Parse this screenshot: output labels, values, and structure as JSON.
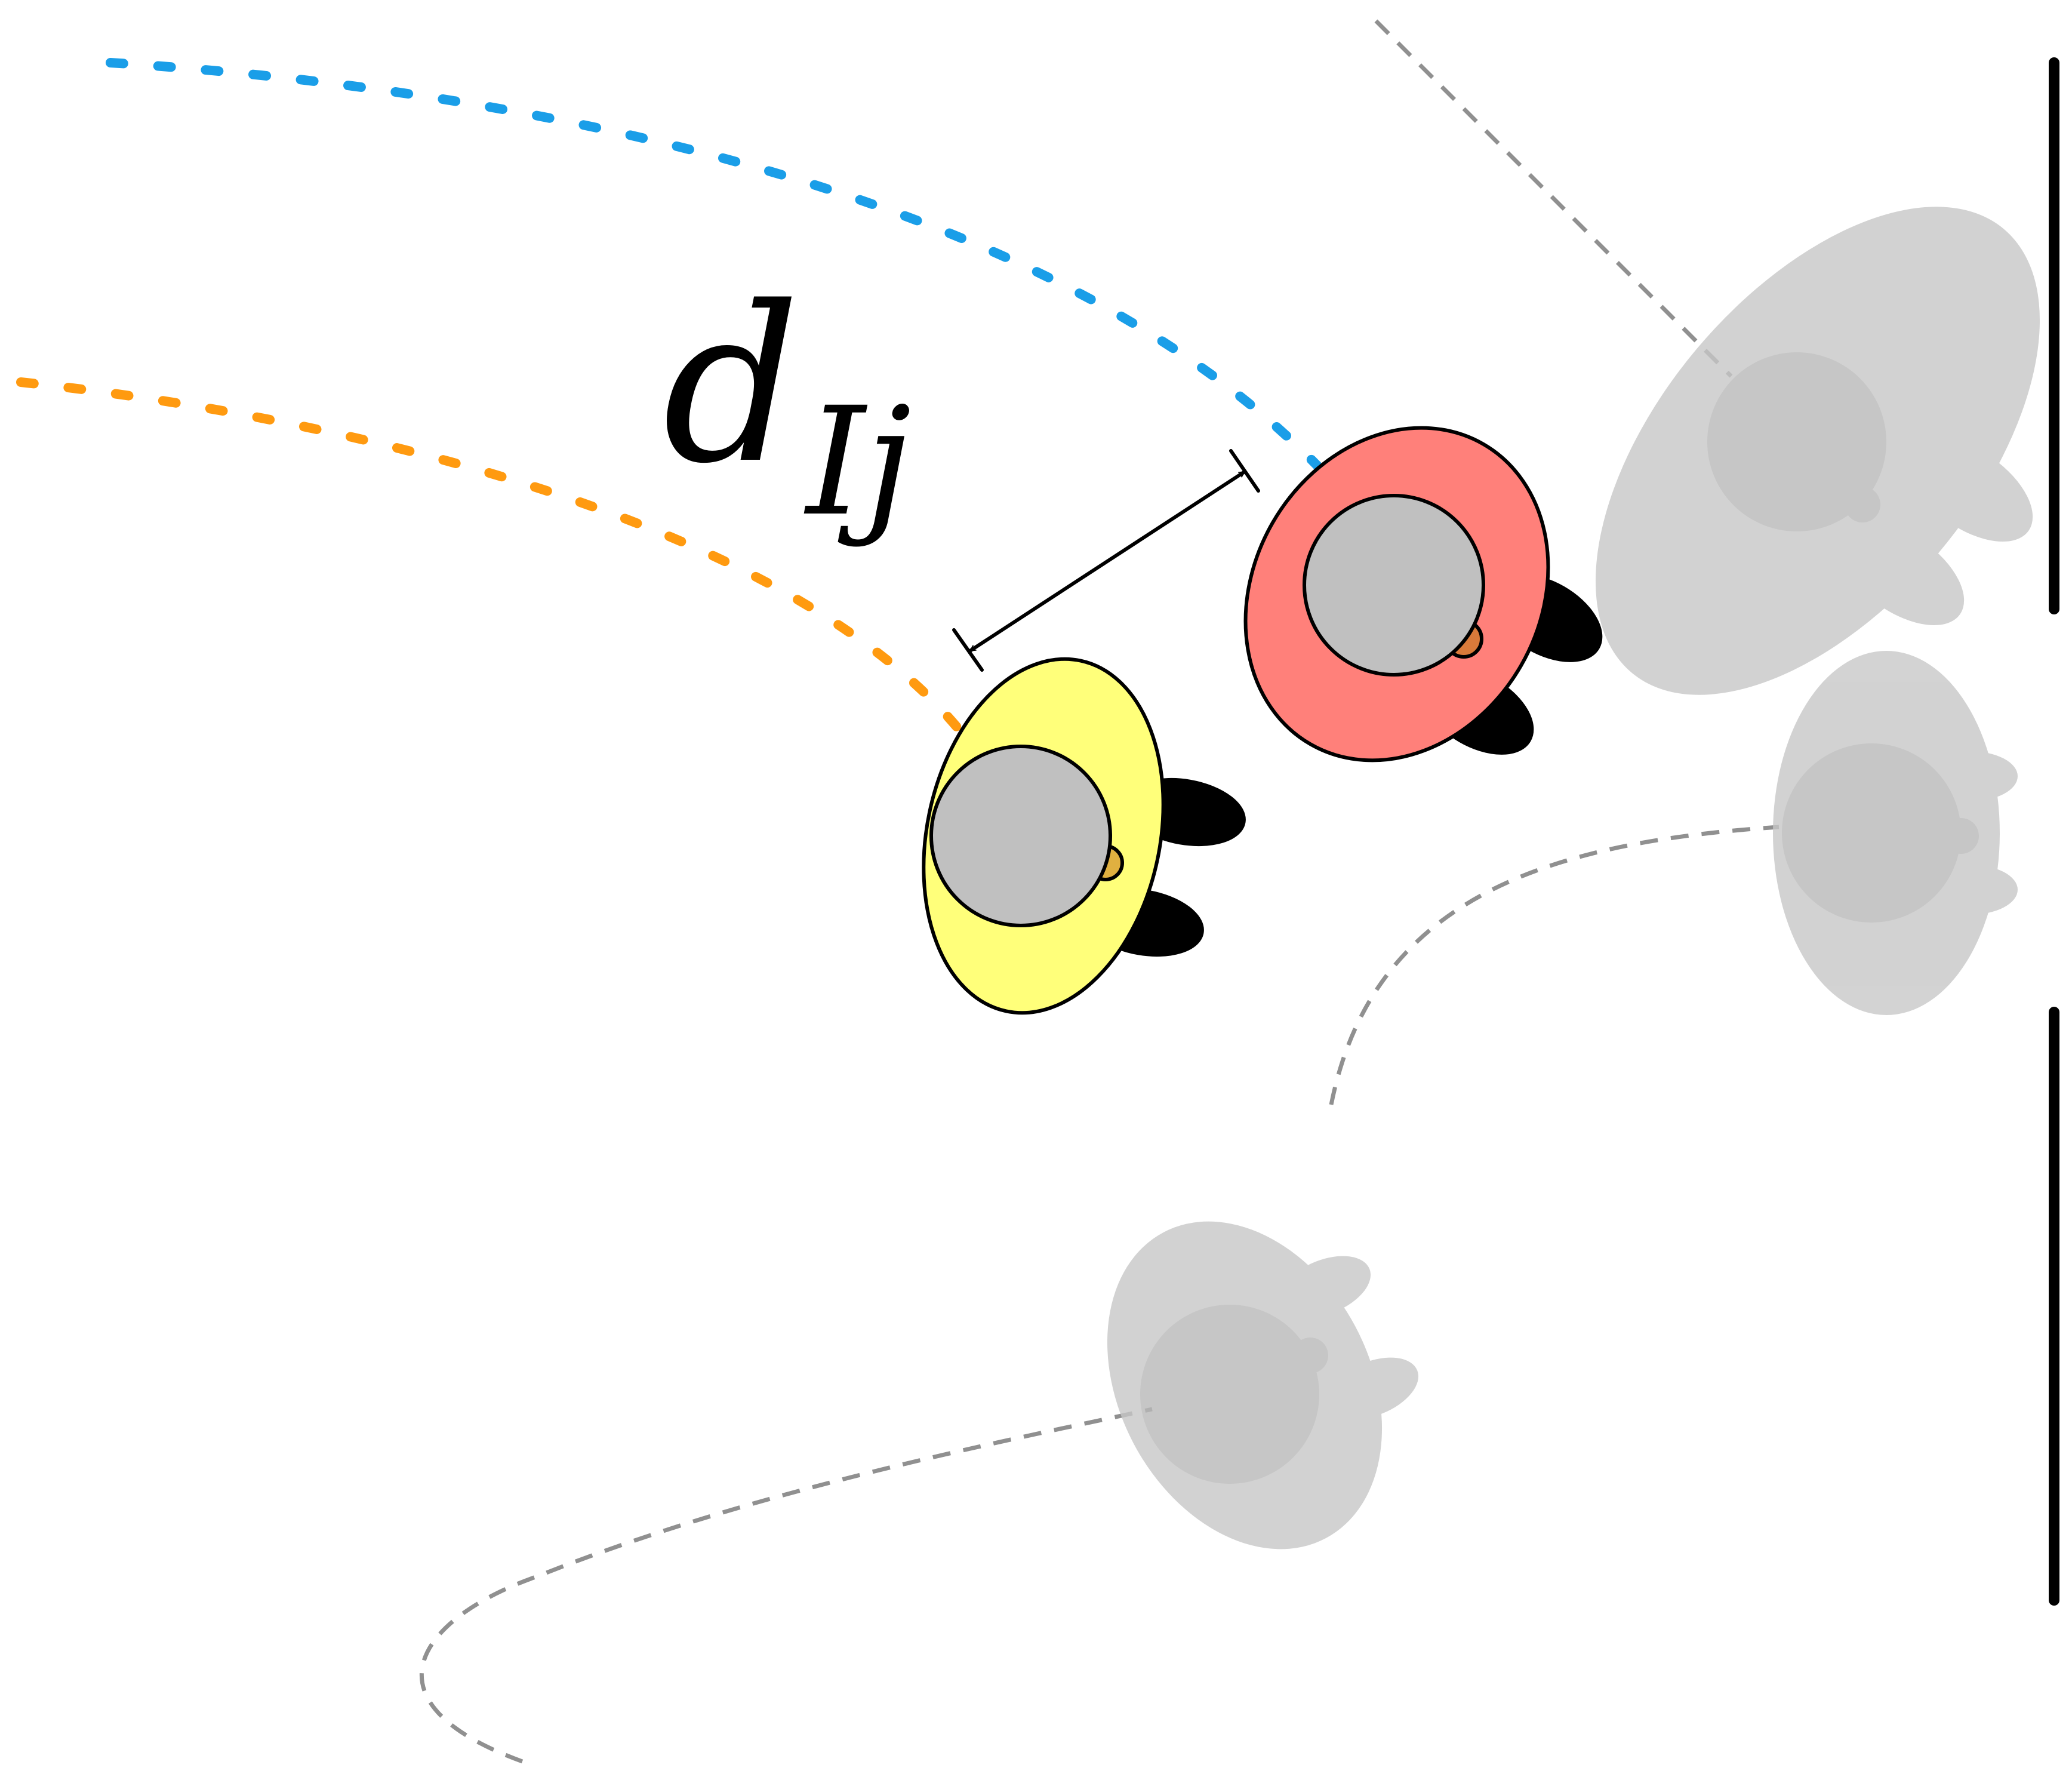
{
  "label": {
    "main": "d",
    "subscript": "Ij"
  },
  "colors": {
    "agent_i_body": "#ff807a",
    "agent_j_body": "#ffff7a",
    "head": "#c0c0c0",
    "nose_i": "#d87a3a",
    "nose_j": "#e0b040",
    "path_i": "#1a9ee8",
    "path_j": "#ff9a10",
    "ghost": "#c8c8c8",
    "ghost_path": "#909090",
    "wall": "#000000"
  },
  "icons": {
    "agent_i": "pedestrian-top-view-icon",
    "agent_j": "pedestrian-top-view-icon",
    "ghosts": "faded-pedestrian-icon"
  }
}
